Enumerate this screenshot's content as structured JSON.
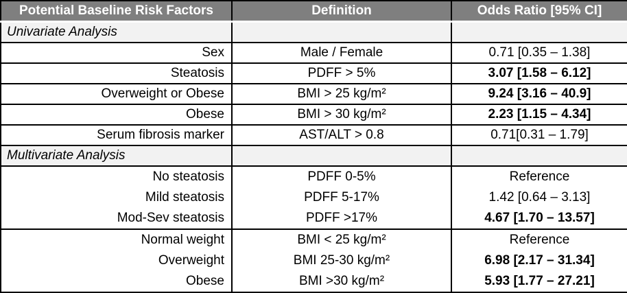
{
  "chart_data": {
    "type": "table",
    "columns": [
      "Potential Baseline Risk Factors",
      "Definition",
      "Odds Ratio [95% CI]"
    ],
    "colors": {
      "header_bg": "#7f7f7f",
      "header_text": "#ffffff",
      "section_bg": "#f2f2f2",
      "border": "#000000"
    },
    "sections": [
      {
        "title": "Univariate Analysis",
        "rows": [
          {
            "factor": "Sex",
            "definition": "Male / Female",
            "odds": "0.71 [0.35 – 1.38]",
            "bold": false
          },
          {
            "factor": "Steatosis",
            "definition": "PDFF > 5%",
            "odds": "3.07 [1.58 – 6.12]",
            "bold": true
          },
          {
            "factor": "Overweight or Obese",
            "definition": "BMI > 25 kg/m²",
            "odds": "9.24 [3.16 – 40.9]",
            "bold": true
          },
          {
            "factor": "Obese",
            "definition": "BMI > 30 kg/m²",
            "odds": "2.23 [1.15 – 4.34]",
            "bold": true
          },
          {
            "factor": "Serum fibrosis marker",
            "definition": "AST/ALT > 0.8",
            "odds": "0.71[0.31 – 1.79]",
            "bold": false
          }
        ]
      },
      {
        "title": "Multivariate Analysis",
        "groups": [
          {
            "rows": [
              {
                "factor": "No steatosis",
                "definition": "PDFF 0-5%",
                "odds": "Reference",
                "bold": false
              },
              {
                "factor": "Mild steatosis",
                "definition": "PDFF 5-17%",
                "odds": "1.42 [0.64 – 3.13]",
                "bold": false
              },
              {
                "factor": "Mod-Sev steatosis",
                "definition": "PDFF >17%",
                "odds": "4.67 [1.70 – 13.57]",
                "bold": true
              }
            ]
          },
          {
            "rows": [
              {
                "factor": "Normal weight",
                "definition": "BMI < 25 kg/m²",
                "odds": "Reference",
                "bold": false
              },
              {
                "factor": "Overweight",
                "definition": "BMI 25-30 kg/m²",
                "odds": "6.98 [2.17 – 31.34]",
                "bold": true
              },
              {
                "factor": "Obese",
                "definition": "BMI >30 kg/m²",
                "odds": "5.93 [1.77 – 27.21]",
                "bold": true
              }
            ]
          }
        ]
      }
    ]
  }
}
